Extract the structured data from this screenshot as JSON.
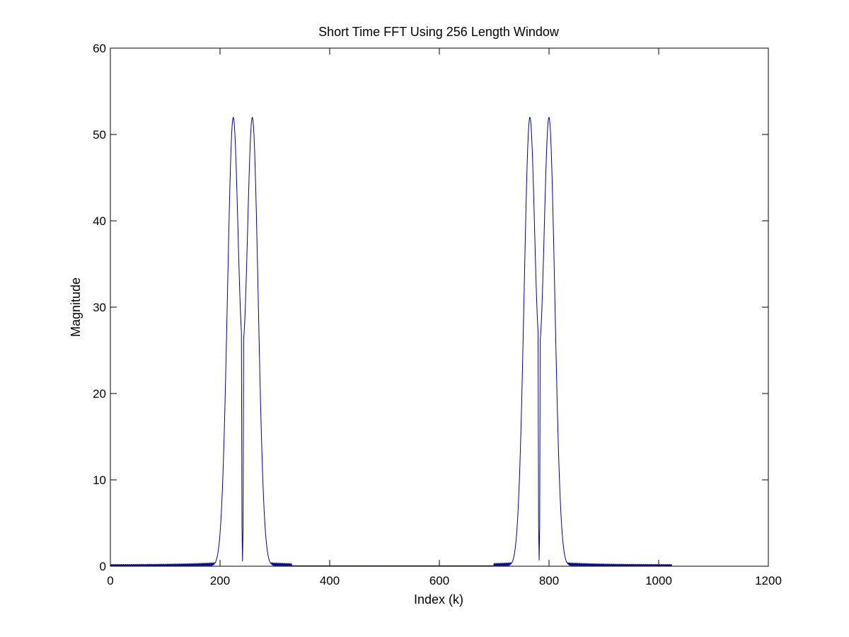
{
  "chart_data": {
    "type": "line",
    "title": "Short Time FFT Using 256 Length Window",
    "xlabel": "Index (k)",
    "ylabel": "Magnitude",
    "xlim": [
      0,
      1200
    ],
    "ylim": [
      0,
      60
    ],
    "xticks": [
      0,
      200,
      400,
      600,
      800,
      1000,
      1200
    ],
    "yticks": [
      0,
      10,
      20,
      30,
      40,
      50,
      60
    ],
    "grid": false,
    "line_color": "#00008b",
    "x_end": 1024,
    "peaks": [
      {
        "x": 224,
        "y": 51.8
      },
      {
        "x": 259,
        "y": 51.8
      },
      {
        "x": 765,
        "y": 51.8
      },
      {
        "x": 800,
        "y": 51.8
      }
    ],
    "valleys": [
      {
        "x": 241,
        "y": 0.6
      },
      {
        "x": 782,
        "y": 0.6
      }
    ],
    "baseline_level": 0.2
  }
}
